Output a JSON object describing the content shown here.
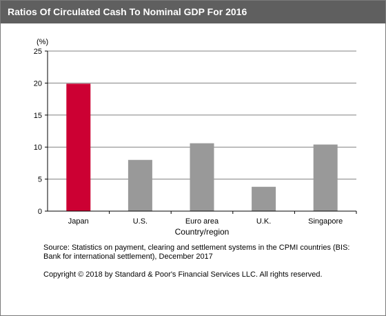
{
  "header": {
    "title": "Ratios Of Circulated Cash To Nominal GDP For 2016"
  },
  "chart_data": {
    "type": "bar",
    "title": "Ratios Of Circulated Cash To Nominal GDP For 2016",
    "categories": [
      "Japan",
      "U.S.",
      "Euro area",
      "U.K.",
      "Singapore"
    ],
    "values": [
      19.9,
      8.0,
      10.6,
      3.8,
      10.4
    ],
    "bar_colors": [
      "#cc0033",
      "#999999",
      "#999999",
      "#999999",
      "#999999"
    ],
    "ylim": [
      0,
      25
    ],
    "yticks": [
      0,
      5,
      10,
      15,
      20,
      25
    ],
    "ylabel_unit": "(%)",
    "xlabel": "Country/region",
    "grid": true
  },
  "footer": {
    "source_line1": "Source: Statistics on payment, clearing and settlement systems in the CPMI countries  (BIS:",
    "source_line2": "Bank for international settlement), December 2017",
    "copyright": "Copyright © 2018 by Standard & Poor's Financial Services LLC. All rights reserved."
  }
}
